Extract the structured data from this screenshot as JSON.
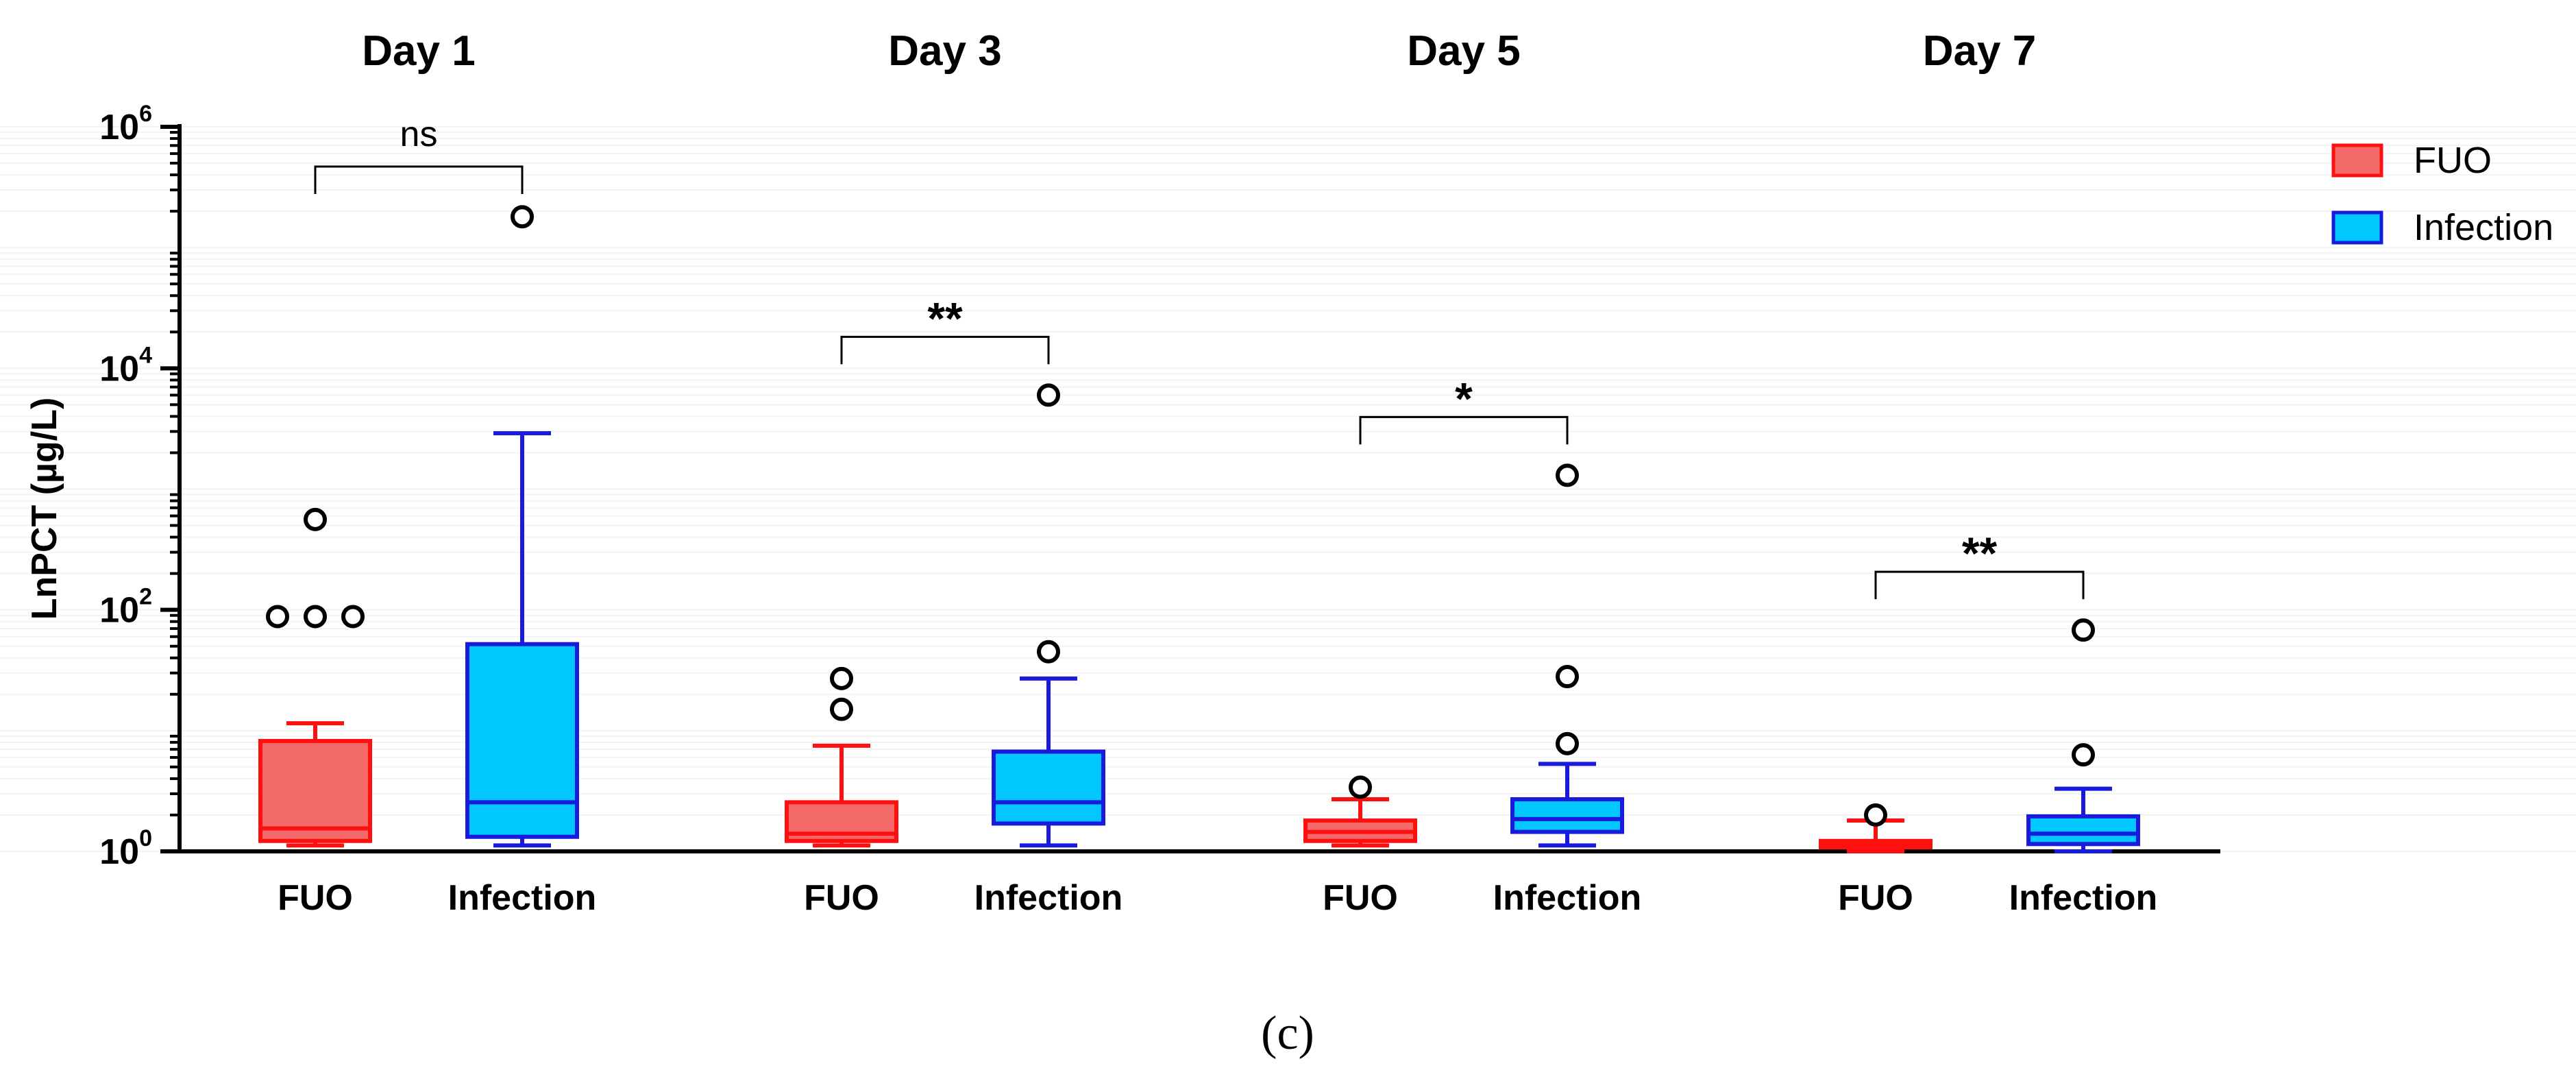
{
  "chart_data": {
    "type": "box",
    "ylabel": "LnPCT (µg/L)",
    "yscale": "log10",
    "ylim": [
      1,
      1000000
    ],
    "yticks": [
      {
        "value": 1,
        "base": "10",
        "exp": "0"
      },
      {
        "value": 100,
        "base": "10",
        "exp": "2"
      },
      {
        "value": 10000,
        "base": "10",
        "exp": "4"
      },
      {
        "value": 1000000,
        "base": "10",
        "exp": "6"
      }
    ],
    "legend": {
      "position": "top-right",
      "items": [
        {
          "label": "FUO",
          "fill": "#f46a6a",
          "stroke": "#ff1010"
        },
        {
          "label": "Infection",
          "fill": "#00c8ff",
          "stroke": "#1a1adc"
        }
      ]
    },
    "caption": "(c)",
    "panels": [
      {
        "title": "Day 1",
        "significance": "ns",
        "groups": [
          {
            "category": "FUO",
            "series": "FUO",
            "whisker_low": 1.12,
            "q1": 1.22,
            "median": 1.55,
            "q3": 8.2,
            "whisker_high": 11.5,
            "outliers": [
              88,
              88,
              88,
              560
            ]
          },
          {
            "category": "Infection",
            "series": "Infection",
            "whisker_low": 1.12,
            "q1": 1.32,
            "median": 2.55,
            "q3": 52,
            "whisker_high": 2900,
            "outliers": [
              180000
            ]
          }
        ]
      },
      {
        "title": "Day 3",
        "significance": "**",
        "groups": [
          {
            "category": "FUO",
            "series": "FUO",
            "whisker_low": 1.12,
            "q1": 1.22,
            "median": 1.4,
            "q3": 2.55,
            "whisker_high": 7.5,
            "outliers": [
              15,
              27
            ]
          },
          {
            "category": "Infection",
            "series": "Infection",
            "whisker_low": 1.12,
            "q1": 1.7,
            "median": 2.55,
            "q3": 6.7,
            "whisker_high": 27,
            "outliers": [
              45,
              6000
            ]
          }
        ]
      },
      {
        "title": "Day 5",
        "significance": "*",
        "groups": [
          {
            "category": "FUO",
            "series": "FUO",
            "whisker_low": 1.12,
            "q1": 1.22,
            "median": 1.45,
            "q3": 1.8,
            "whisker_high": 2.7,
            "outliers": [
              3.4
            ]
          },
          {
            "category": "Infection",
            "series": "Infection",
            "whisker_low": 1.12,
            "q1": 1.45,
            "median": 1.85,
            "q3": 2.7,
            "whisker_high": 5.3,
            "outliers": [
              7.8,
              28,
              1300
            ]
          }
        ]
      },
      {
        "title": "Day 7",
        "significance": "**",
        "groups": [
          {
            "category": "FUO",
            "series": "FUO",
            "whisker_low": 1.0,
            "q1": 1.08,
            "median": 1.15,
            "q3": 1.22,
            "whisker_high": 1.8,
            "outliers": [
              2.0
            ]
          },
          {
            "category": "Infection",
            "series": "Infection",
            "whisker_low": 1.0,
            "q1": 1.15,
            "median": 1.4,
            "q3": 1.95,
            "whisker_high": 3.3,
            "outliers": [
              6.3,
              68
            ]
          }
        ]
      }
    ]
  }
}
